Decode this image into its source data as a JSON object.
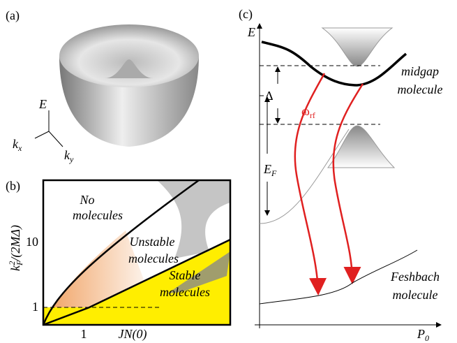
{
  "panel_a": {
    "label": "(a)",
    "axis_e": "E",
    "axis_kx": {
      "base": "k",
      "sub": "x"
    },
    "axis_ky": {
      "base": "k",
      "sub": "y"
    }
  },
  "panel_b": {
    "label": "(b)",
    "y_label": {
      "base": "k",
      "sub": "F",
      "sup": "2",
      "rest": "/(2MΔ)"
    },
    "x_label": "JN(0)",
    "y_ticks": [
      "10",
      "1"
    ],
    "x_ticks": [
      "1"
    ],
    "regions": {
      "no": [
        "No",
        "molecules"
      ],
      "unstable": [
        "Unstable",
        "molecules"
      ],
      "stable": [
        "Stable",
        "molecules"
      ]
    }
  },
  "panel_c": {
    "label": "(c)",
    "axis_e": "E",
    "axis_p": {
      "base": "P",
      "sub": "0"
    },
    "delta": "Δ",
    "omega": {
      "base": "ω",
      "sub": "rf"
    },
    "ef": {
      "base": "E",
      "sub": "F"
    },
    "midgap": [
      "midgap",
      "molecule"
    ],
    "feshbach": [
      "Feshbach",
      "molecule"
    ]
  }
}
